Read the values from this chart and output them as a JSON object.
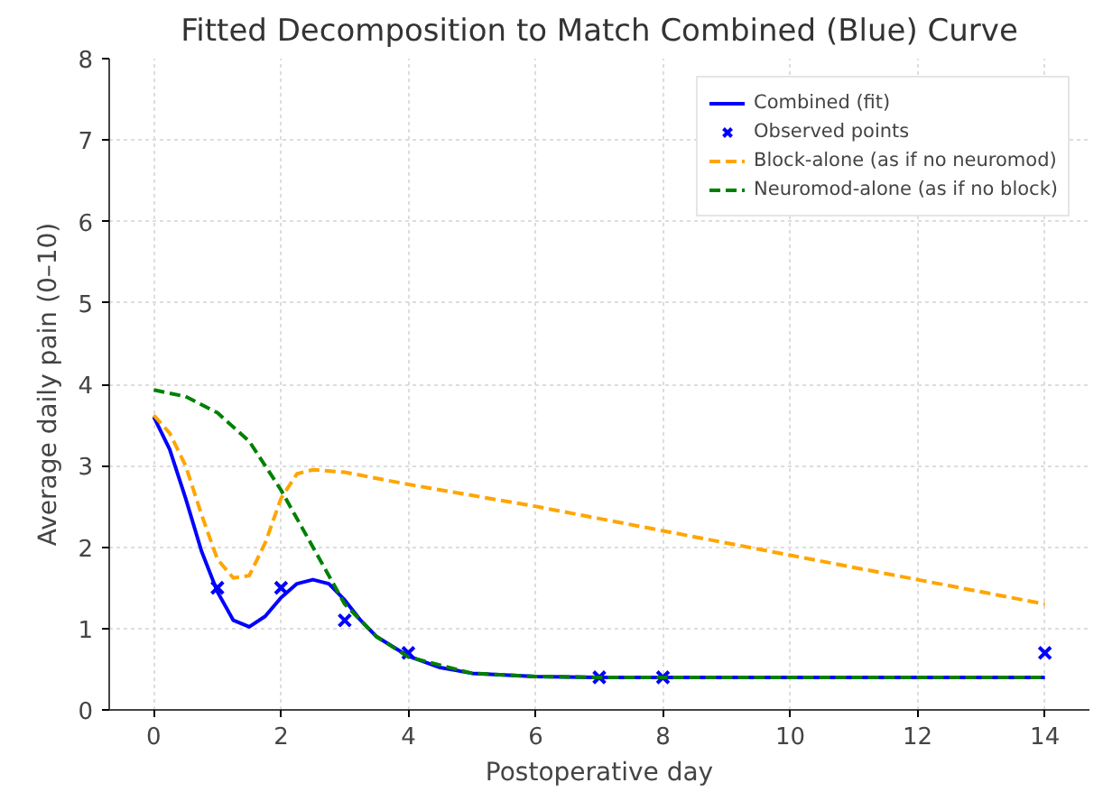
{
  "chart_data": {
    "type": "line",
    "title": "Fitted Decomposition to Match Combined (Blue) Curve",
    "xlabel": "Postoperative day",
    "ylabel": "Average daily pain (0–10)",
    "xlim": [
      -0.7,
      14.7
    ],
    "ylim": [
      0,
      8
    ],
    "xticks": [
      0,
      2,
      4,
      6,
      8,
      10,
      12,
      14
    ],
    "yticks": [
      0,
      1,
      2,
      3,
      4,
      5,
      6,
      7,
      8
    ],
    "grid": true,
    "legend": "top right",
    "series": [
      {
        "name": "Combined (fit)",
        "color": "#0000ff",
        "line_style": "solid",
        "x": [
          0,
          0.25,
          0.5,
          0.75,
          1,
          1.25,
          1.5,
          1.75,
          2,
          2.25,
          2.5,
          2.75,
          3,
          3.25,
          3.5,
          4,
          4.5,
          5,
          6,
          7,
          14
        ],
        "values": [
          3.6,
          3.2,
          2.6,
          1.95,
          1.45,
          1.1,
          1.02,
          1.15,
          1.38,
          1.55,
          1.6,
          1.55,
          1.35,
          1.1,
          0.9,
          0.66,
          0.52,
          0.45,
          0.41,
          0.4,
          0.4
        ]
      },
      {
        "name": "Observed points",
        "type": "scatter",
        "marker": "cross",
        "color": "#0000ff",
        "x": [
          1,
          2,
          3,
          4,
          7,
          8,
          14
        ],
        "values": [
          1.5,
          1.5,
          1.1,
          0.7,
          0.4,
          0.4,
          0.7
        ]
      },
      {
        "name": "Block-alone (as if no neuromod)",
        "color": "#ffa500",
        "line_style": "dashed",
        "x": [
          0,
          0.25,
          0.5,
          0.75,
          1,
          1.25,
          1.5,
          1.75,
          2,
          2.25,
          2.5,
          3,
          4,
          6,
          8,
          10,
          12,
          14
        ],
        "values": [
          3.62,
          3.4,
          3.0,
          2.4,
          1.85,
          1.62,
          1.65,
          2.05,
          2.6,
          2.9,
          2.95,
          2.92,
          2.77,
          2.5,
          2.2,
          1.9,
          1.6,
          1.3
        ]
      },
      {
        "name": "Neuromod-alone (as if no block)",
        "color": "#008000",
        "line_style": "dashed",
        "x": [
          0,
          0.5,
          1,
          1.5,
          2,
          2.5,
          3,
          3.5,
          4,
          5,
          6,
          7,
          14
        ],
        "values": [
          3.93,
          3.85,
          3.65,
          3.3,
          2.7,
          2.0,
          1.3,
          0.9,
          0.65,
          0.45,
          0.41,
          0.4,
          0.4
        ]
      }
    ]
  }
}
